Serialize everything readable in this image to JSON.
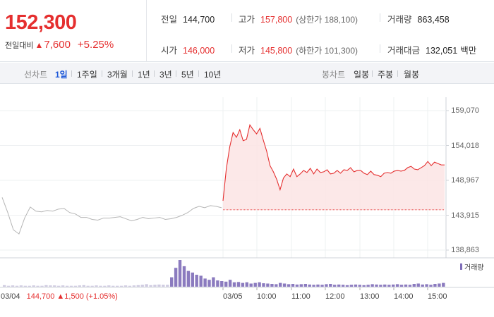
{
  "summary": {
    "price": "152,300",
    "change_label": "전일대비",
    "change_arrow": "▲",
    "change_value": "7,600",
    "change_rate": "+5.25%",
    "prev_close_label": "전일",
    "prev_close": "144,700",
    "high_label": "고가",
    "high": "157,800",
    "upper_limit": "(상한가 188,100)",
    "volume_label": "거래량",
    "volume": "863,458",
    "open_label": "시가",
    "open": "146,000",
    "low_label": "저가",
    "low": "145,800",
    "lower_limit": "(하한가 101,300)",
    "amount_label": "거래대금",
    "amount": "132,051",
    "amount_unit": "백만"
  },
  "tabs": {
    "line_label": "선차트",
    "line": [
      "1일",
      "1주일",
      "3개월",
      "1년",
      "3년",
      "5년",
      "10년"
    ],
    "line_active": "1일",
    "candle_label": "봉차트",
    "candle": [
      "일봉",
      "주봉",
      "월봉"
    ]
  },
  "colors": {
    "up": "#e52f2f",
    "down": "#1d58d8",
    "prev_line": "#b5b5b5",
    "fill": "#fbe4e4",
    "volume": "#7e6db8",
    "tab_bg": "#f3f4f7"
  },
  "chart_data": {
    "type": "line",
    "y_ticks": [
      "159,070",
      "154,018",
      "148,967",
      "143,915",
      "138,863"
    ],
    "ylim": [
      138863,
      159070
    ],
    "x_ticks": [
      "03/05",
      "10:00",
      "11:00",
      "12:00",
      "13:00",
      "14:00",
      "15:00"
    ],
    "legend": "거래량",
    "baseline": 144700,
    "prev_day_note": {
      "date": "03/04",
      "text": "144,700 ▲1,500 (+1.05%)"
    },
    "series": [
      {
        "values": [
          146500,
          144300,
          141800,
          141200,
          143500,
          145100,
          144500,
          144400,
          144600,
          144500,
          144800,
          144900,
          144300,
          144100,
          143600,
          143600,
          143300,
          143200,
          143500,
          143500,
          143600,
          143700,
          143400,
          143100,
          143300,
          143600,
          143400,
          143500,
          143600,
          143300,
          143400,
          143600,
          143900,
          144300,
          144900,
          145200,
          145000,
          145300,
          145200,
          145000
        ]
      },
      {
        "values": [
          146000,
          150700,
          153800,
          155900,
          155200,
          156300,
          154700,
          154900,
          157000,
          156300,
          155700,
          156500,
          154800,
          153200,
          151100,
          150200,
          149100,
          147600,
          149300,
          149900,
          149500,
          150600,
          149500,
          149900,
          150400,
          150100,
          150700,
          149900,
          150600,
          150100,
          150200,
          150500,
          149900,
          150000,
          150400,
          150000,
          150500,
          150400,
          150800,
          150200,
          150400,
          150400,
          150000,
          149800,
          150300,
          149800,
          149700,
          149500,
          150000,
          150100,
          150000,
          150300,
          150400,
          150300,
          150400,
          150800,
          151000,
          150600,
          150500,
          150800,
          151100,
          151700,
          151100,
          151600,
          151400,
          151200,
          151200
        ]
      }
    ],
    "volume": [
      5,
      3,
      4,
      3,
      4,
      3,
      3,
      4,
      3,
      3,
      5,
      4,
      4,
      3,
      4,
      3,
      3,
      3,
      4,
      5,
      3,
      3,
      4,
      3,
      3,
      4,
      3,
      3,
      3,
      4,
      3,
      4,
      5,
      6,
      8,
      5,
      6,
      7,
      6,
      6,
      30,
      60,
      85,
      65,
      50,
      45,
      38,
      35,
      26,
      22,
      30,
      20,
      18,
      16,
      22,
      14,
      15,
      12,
      14,
      10,
      12,
      14,
      11,
      10,
      9,
      8,
      12,
      10,
      8,
      9,
      7,
      8,
      9,
      7,
      6,
      7,
      6,
      8,
      9,
      6,
      7,
      6,
      5,
      6,
      7,
      6,
      5,
      6,
      8,
      7,
      6,
      7,
      6,
      7,
      8,
      6,
      7,
      6,
      9,
      10,
      7,
      8,
      6,
      9,
      10,
      12
    ]
  }
}
